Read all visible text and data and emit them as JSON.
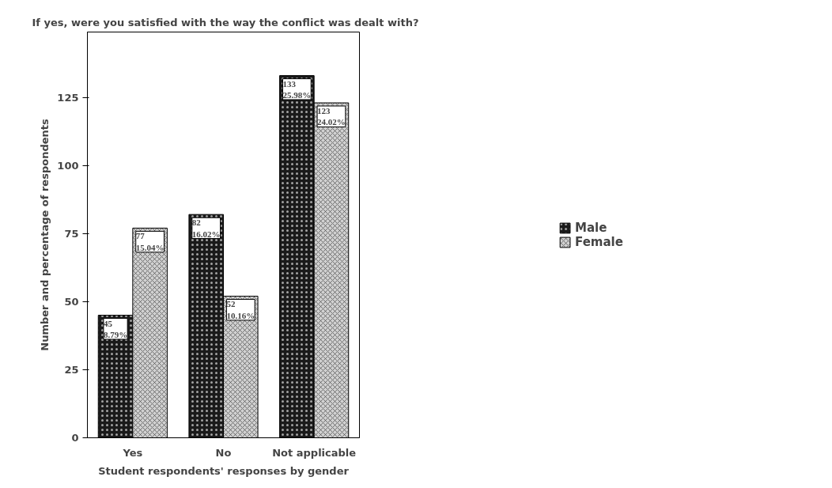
{
  "chart_data": {
    "type": "bar",
    "title": "If yes, were you satisfied with the way the conflict was dealt with?",
    "xlabel": "Student respondents' responses by gender",
    "ylabel": "Number and percentage of respondents",
    "categories": [
      "Yes",
      "No",
      "Not applicable"
    ],
    "series": [
      {
        "name": "Male",
        "color": "#1a1a1a",
        "values": [
          45,
          82,
          133
        ],
        "value_labels": [
          "45\n8.79%",
          "82\n16.02%",
          "133\n25.98%"
        ]
      },
      {
        "name": "Female",
        "color": "#d0d0d0",
        "values": [
          77,
          52,
          123
        ],
        "value_labels": [
          "77\n15.04%",
          "52\n10.16%",
          "123\n24.02%"
        ]
      }
    ],
    "ylim": [
      0,
      149
    ],
    "yticks": [
      0,
      25,
      50,
      75,
      100,
      125
    ],
    "grid": false,
    "legend": "right"
  }
}
